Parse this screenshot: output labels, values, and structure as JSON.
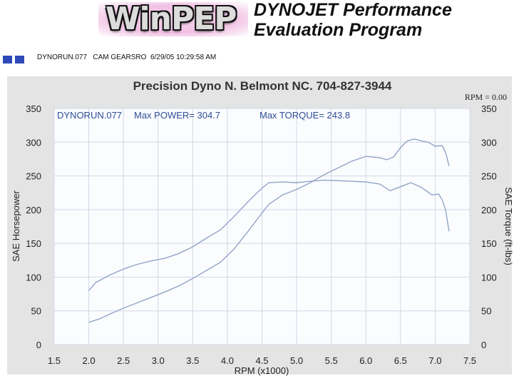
{
  "header": {
    "logo_text": "WinPEP",
    "title_line1": "DYNOJET Performance",
    "title_line2": "Evaluation Program"
  },
  "info": {
    "run_file": "DYNORUN.077",
    "description": "CAM GEARSRO",
    "timestamp": "6/29/05 10:29:58 AM"
  },
  "colors": {
    "panel": "#e4e4e4",
    "plot_bg": "#fafcfe",
    "grid": "#d3d8e6",
    "curve": "#93a4c6",
    "annotation": "#2f4f97",
    "window_icon": "#2e49b8"
  },
  "chart_data": {
    "type": "line",
    "title": "Precision Dyno  N. Belmont NC. 704-827-3944",
    "rpm_readout": "RPM = 0.00",
    "annotations": {
      "run": "DYNORUN.077",
      "max_power": "Max POWER= 304.7",
      "max_torque": "Max TORQUE= 243.8"
    },
    "xlabel": "RPM (x1000)",
    "ylabel_left": "SAE Horsepower",
    "ylabel_right": "SAE Torque (ft-lbs)",
    "xlim": [
      1.5,
      7.5
    ],
    "ylim": [
      0,
      350
    ],
    "x_ticks": [
      "1.5",
      "2.0",
      "2.5",
      "3.0",
      "3.5",
      "4.0",
      "4.5",
      "5.0",
      "5.5",
      "6.0",
      "6.5",
      "7.0",
      "7.5"
    ],
    "y_ticks": [
      "0",
      "50",
      "100",
      "150",
      "200",
      "250",
      "300",
      "350"
    ],
    "grid": true,
    "series": [
      {
        "x": [
          2.0,
          2.15,
          2.3,
          2.5,
          2.7,
          2.9,
          3.1,
          3.3,
          3.5,
          3.7,
          3.9,
          4.1,
          4.3,
          4.5,
          4.6,
          4.8,
          5.0,
          5.2,
          5.4,
          5.6,
          5.8,
          6.0,
          6.2,
          6.3,
          6.4,
          6.5,
          6.6,
          6.7,
          6.8,
          6.9,
          7.0,
          7.1,
          7.15,
          7.2
        ],
        "values": [
          33,
          38,
          45,
          54,
          62,
          70,
          78,
          87,
          98,
          110,
          122,
          142,
          168,
          195,
          208,
          222,
          230,
          240,
          252,
          262,
          272,
          279,
          277,
          274,
          278,
          292,
          302,
          304.7,
          302,
          300,
          294,
          295,
          285,
          265
        ]
      },
      {
        "x": [
          2.0,
          2.1,
          2.3,
          2.5,
          2.7,
          2.9,
          3.1,
          3.3,
          3.5,
          3.7,
          3.9,
          4.1,
          4.3,
          4.5,
          4.6,
          4.8,
          5.0,
          5.2,
          5.4,
          5.6,
          5.8,
          6.0,
          6.2,
          6.35,
          6.5,
          6.65,
          6.8,
          6.95,
          7.05,
          7.1,
          7.15,
          7.2
        ],
        "values": [
          80,
          92,
          103,
          112,
          119,
          124,
          128,
          135,
          145,
          158,
          170,
          190,
          212,
          232,
          240,
          241,
          240,
          242,
          243.8,
          243,
          242,
          241,
          238,
          228,
          234,
          240,
          233,
          222,
          223,
          215,
          200,
          168
        ]
      }
    ]
  }
}
